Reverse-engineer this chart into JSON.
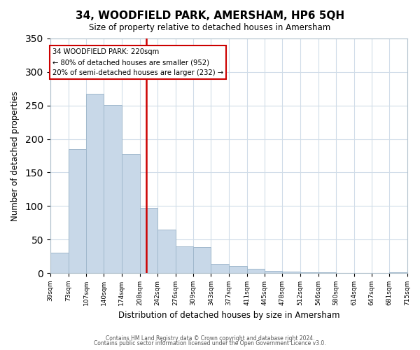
{
  "title": "34, WOODFIELD PARK, AMERSHAM, HP6 5QH",
  "subtitle": "Size of property relative to detached houses in Amersham",
  "xlabel": "Distribution of detached houses by size in Amersham",
  "ylabel": "Number of detached properties",
  "bar_color": "#c8d8e8",
  "bar_edge_color": "#a0b8cc",
  "bin_edges": [
    39,
    73,
    107,
    140,
    174,
    208,
    242,
    276,
    309,
    343,
    377,
    411,
    445,
    478,
    512,
    546,
    580,
    614,
    647,
    681,
    715
  ],
  "bin_labels": [
    "39sqm",
    "73sqm",
    "107sqm",
    "140sqm",
    "174sqm",
    "208sqm",
    "242sqm",
    "276sqm",
    "309sqm",
    "343sqm",
    "377sqm",
    "411sqm",
    "445sqm",
    "478sqm",
    "512sqm",
    "546sqm",
    "580sqm",
    "614sqm",
    "647sqm",
    "681sqm",
    "715sqm"
  ],
  "bar_heights": [
    30,
    185,
    267,
    251,
    178,
    97,
    65,
    40,
    39,
    14,
    10,
    6,
    3,
    2,
    1,
    1,
    0,
    0,
    0,
    1
  ],
  "property_size": 220,
  "vline_x_bin_index": 5.18,
  "annotation_text_line1": "34 WOODFIELD PARK: 220sqm",
  "annotation_text_line2": "← 80% of detached houses are smaller (952)",
  "annotation_text_line3": "20% of semi-detached houses are larger (232) →",
  "vline_color": "#cc0000",
  "annotation_box_edge": "#cc0000",
  "ylim": [
    0,
    350
  ],
  "yticks": [
    0,
    50,
    100,
    150,
    200,
    250,
    300,
    350
  ],
  "footer_line1": "Contains HM Land Registry data © Crown copyright and database right 2024.",
  "footer_line2": "Contains public sector information licensed under the Open Government Licence v3.0.",
  "background_color": "#ffffff",
  "grid_color": "#d0dce8"
}
